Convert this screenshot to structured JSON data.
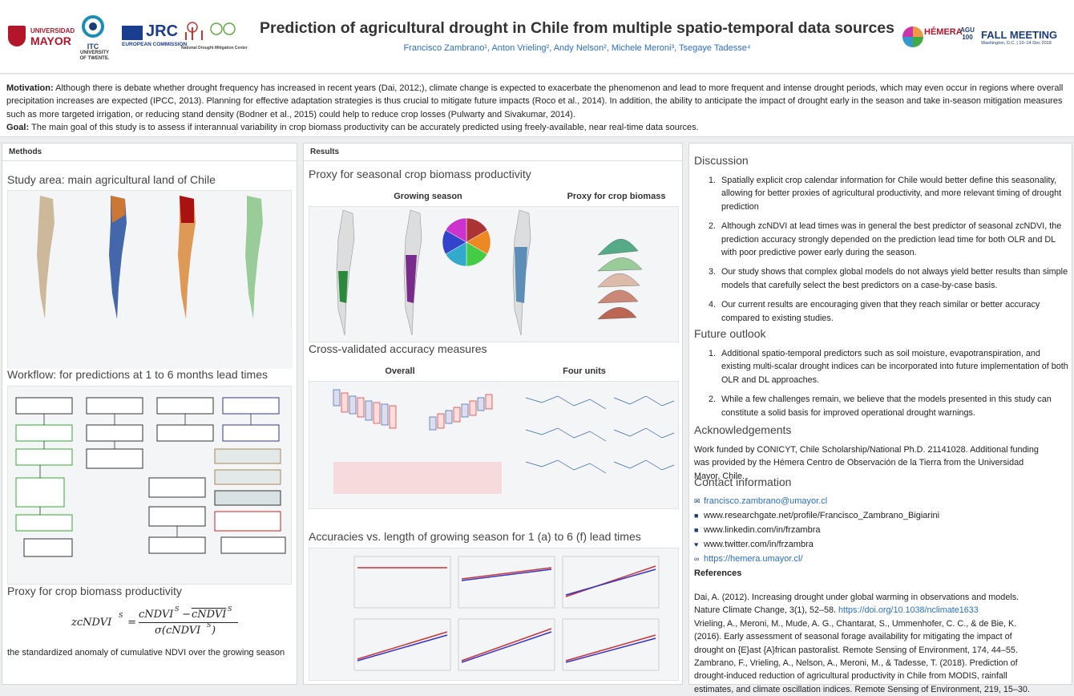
{
  "header": {
    "title": "Prediction of agricultural drought in Chile from multiple spatio-temporal data sources",
    "authors": "Francisco Zambrano¹, Anton Vrieling², Andy Nelson², Michele Meroni³, Tsegaye Tadesse⁴",
    "logos": {
      "umayor_line1": "UNIVERSIDAD",
      "umayor_line2": "MAYOR",
      "itc": "ITC",
      "twente": "UNIVERSITY OF TWENTE.",
      "jrc": "JRC",
      "ec": "EUROPEAN COMMISSION",
      "ndmc": "National Drought Mitigation Center",
      "hemera": "HÉMERA",
      "agu": "AGU 100",
      "fall": "FALL MEETING",
      "fall_sub": "Washington, D.C. | 10–14 Dec 2018"
    }
  },
  "motivation": {
    "label": "Motivation:",
    "text": "Although there is debate whether drought frequency has increased in recent years (Dai, 2012;), climate change is expected to exacerbate the phenomenon and lead to more frequent and intense drought periods, which may even occur in regions where overall precipitation increases are expected (IPCC, 2013). Planning for effective adaptation strategies is thus crucial to mitigate future impacts (Roco et al., 2014). In addition, the ability to anticipate the impact of drought early in the season and take in-season mitigation measures such as more targeted irrigation, or reducing stand density (Bodner et al., 2015) could help to reduce crop losses (Pulwarty and Sivakumar, 2014).",
    "goal_label": "Goal:",
    "goal_text": "The main goal of this study is to assess if interannual variability in crop biomass productivity can be accurately predicted using freely-available, near real-time data sources."
  },
  "methods": {
    "panel_title": "Methods",
    "study_area": "Study area: main agricultural land of Chile",
    "workflow": "Workflow: for predictions at 1 to 6 months lead times",
    "proxy": "Proxy for crop biomass productivity",
    "formula_lhs": "zcNDVI",
    "formula_sup": "S",
    "formula_eq": " = ",
    "formula_num": "cNDVI",
    "formula_num_sup": "S",
    "formula_minus": " − ",
    "formula_den": "σ(cNDVI",
    "formula_den_sup": "S",
    "formula_den_end": ")",
    "description": "the standardized anomaly of cumulative NDVI over the growing season"
  },
  "results": {
    "panel_title": "Results",
    "proxy_section": "Proxy for seasonal crop biomass productivity",
    "growing_season": "Growing season",
    "proxy_crop": "Proxy for crop biomass",
    "cross_validated": "Cross-validated accuracy measures",
    "overall": "Overall",
    "four_units": "Four units",
    "accuracies": "Accuracies vs. length of growing season for 1 (a) to 6 (f) lead times"
  },
  "discussion": {
    "title": "Discussion",
    "items": [
      "Spatially explicit crop calendar information for Chile would better define this seasonality, allowing for better proxies of agricultural productivity, and more relevant timing of drought prediction",
      "Although zcNDVI at lead times was in general the best predictor of seasonal zcNDVI, the prediction accuracy strongly depended on the prediction lead time for both OLR and DL with poor predictive power early during the season.",
      "Our study shows that complex global models do not always yield better results than simple models that carefully select the best predictors on a case-by-case basis.",
      "Our current results are encouraging given that they reach similar or better accuracy compared to existing studies."
    ],
    "future_title": "Future outlook",
    "future_items": [
      "Additional spatio-temporal predictors such as soil moisture, evapotranspiration, and existing multi-scalar drought indices can be incorporated into future implementation of both OLR and DL approaches.",
      "While a few challenges remain, we believe that the models presented in this study can constitute a solid basis for improved operational drought warnings."
    ],
    "ack_title": "Acknowledgements",
    "ack_text": "Work funded by CONICYT, Chile Scholarship/National Ph.D. 21141028. Additional funding was provided by the Hémera Centro de Observación de la Tierra from the Universidad Mayor, Chile.",
    "contact_title": "Contact information",
    "contacts": {
      "email": "francisco.zambrano@umayor.cl",
      "researchgate": "www.researchgate.net/profile/Francisco_Zambrano_Bigiarini",
      "linkedin": "www.linkedin.com/in/frzambra",
      "twitter": "www.twitter.com/in/frzambra",
      "web": "https://hemera.umayor.cl/"
    },
    "refs_title": "References",
    "ref1": "Dai, A. (2012). Increasing drought under global warming in observations and models. Nature Climate Change, 3(1), 52–58. ",
    "ref1_link": "https://doi.org/10.1038/nclimate1633",
    "ref2": "Vrieling, A., Meroni, M., Mude, A. G., Chantarat, S., Ummenhofer, C. C., & de Bie, K. (2016). Early assessment of seasonal forage availability for mitigating the impact of drought on {E}ast {A}frican pastoralist. Remote Sensing of Environment, 174, 44–55.",
    "ref3": "Zambrano, F., Vrieling, A., Nelson, A., Meroni, M., & Tadesse, T. (2018). Prediction of drought-induced reduction of agricultural productivity in Chile from MODIS, rainfall estimates, and climate oscillation indices. Remote Sensing of Environment, 219, 15–30."
  },
  "colors": {
    "title": "#333333",
    "accent": "#2a6fc9",
    "umayor": "#b3152b",
    "jrc": "#1a3d8f"
  }
}
